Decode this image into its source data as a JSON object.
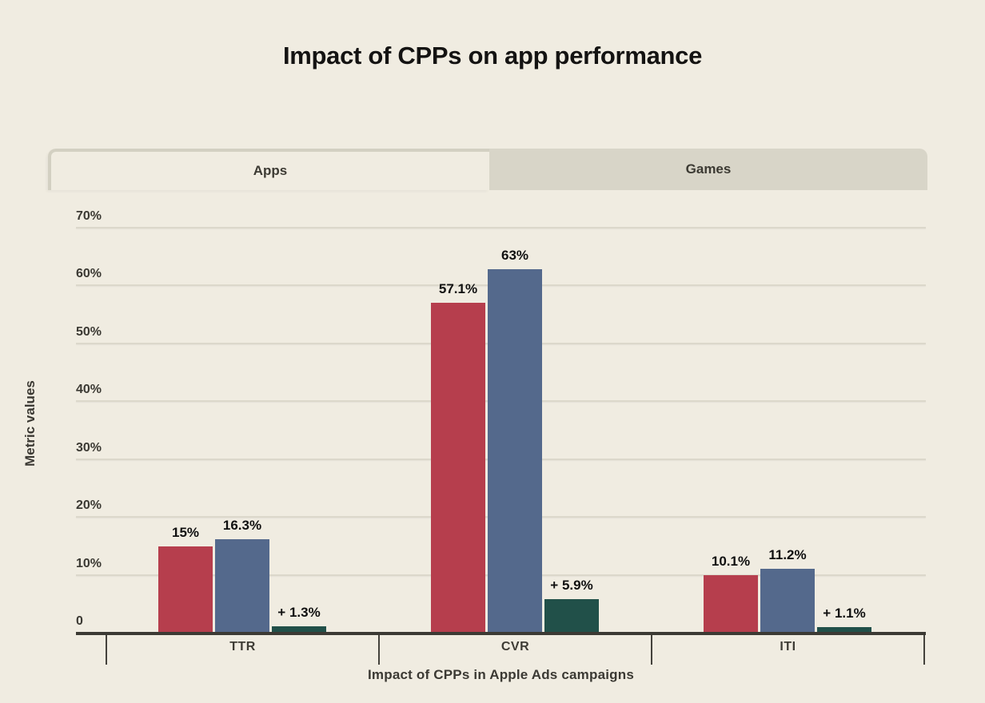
{
  "title": "Impact of CPPs on app performance",
  "tabs": [
    {
      "label": "Apps",
      "active": true
    },
    {
      "label": "Games",
      "active": false
    }
  ],
  "colors": {
    "background": "#F0ECE1",
    "inactive_tab": "#D8D5C8",
    "grid": "#DCD8CB",
    "axis": "#3C3A34",
    "bar_red": "#B63E4D",
    "bar_blue": "#54698C",
    "bar_green": "#215049"
  },
  "chart_data": {
    "type": "bar",
    "title": "Impact of CPPs on app performance",
    "categories": [
      "TTR",
      "CVR",
      "ITI"
    ],
    "series": [
      {
        "color": "#B63E4D",
        "values": [
          15,
          57.1,
          10.1
        ],
        "labels": [
          "15%",
          "57.1%",
          "10.1%"
        ]
      },
      {
        "color": "#54698C",
        "values": [
          16.3,
          63,
          11.2
        ],
        "labels": [
          "16.3%",
          "63%",
          "11.2%"
        ]
      },
      {
        "color": "#215049",
        "values": [
          1.3,
          5.9,
          1.1
        ],
        "labels": [
          "+ 1.3%",
          "+ 5.9%",
          "+ 1.1%"
        ]
      }
    ],
    "xlabel": "Impact of CPPs in Apple Ads campaigns",
    "ylabel": "Metric values",
    "ylim": [
      0,
      70
    ],
    "yticks": [
      {
        "value": 0,
        "label": "0"
      },
      {
        "value": 10,
        "label": "10%"
      },
      {
        "value": 20,
        "label": "20%"
      },
      {
        "value": 30,
        "label": "30%"
      },
      {
        "value": 40,
        "label": "40%"
      },
      {
        "value": 50,
        "label": "50%"
      },
      {
        "value": 60,
        "label": "60%"
      },
      {
        "value": 70,
        "label": "70%"
      }
    ],
    "grid": true,
    "legend": false
  }
}
